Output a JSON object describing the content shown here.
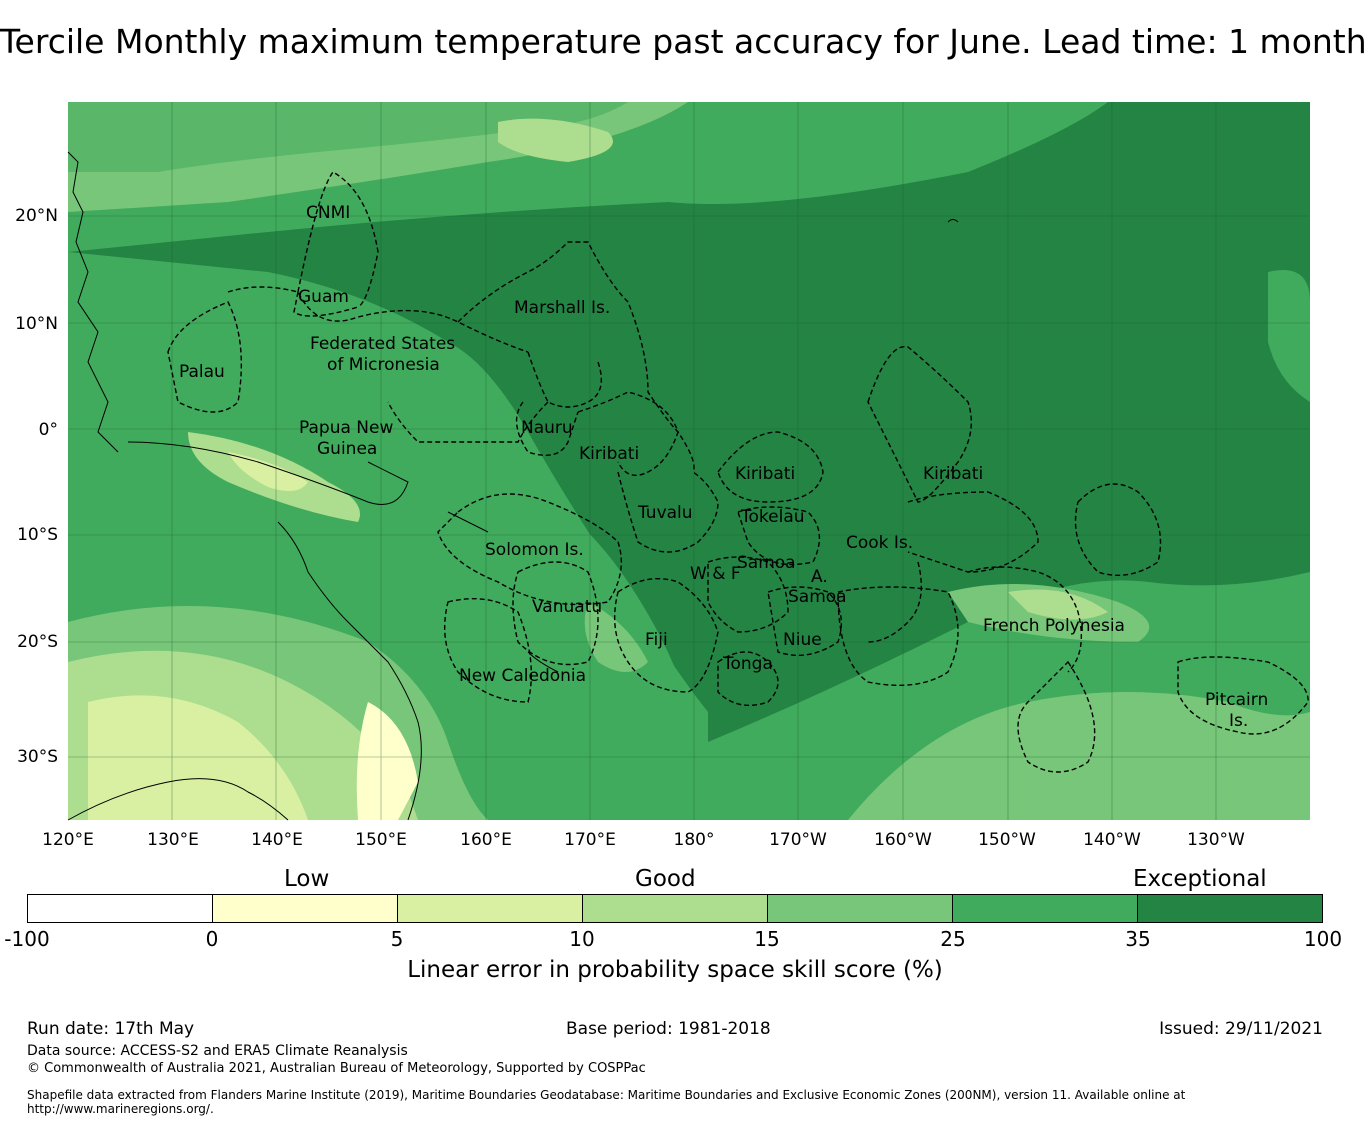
{
  "title": "Tercile Monthly maximum temperature past accuracy for June. Lead time: 1 month",
  "map": {
    "lat_ticks": [
      "20°N",
      "10°N",
      "0°",
      "10°S",
      "20°S",
      "30°S"
    ],
    "lon_ticks": [
      "120°E",
      "130°E",
      "140°E",
      "150°E",
      "160°E",
      "170°E",
      "180°",
      "170°W",
      "160°W",
      "150°W",
      "140°W",
      "130°W"
    ],
    "regions": [
      "CNMI",
      "Guam",
      "Marshall Is.",
      "Federated States",
      "of Micronesia",
      "Palau",
      "Papua New",
      "Guinea",
      "Nauru",
      "Kiribati",
      "Kiribati",
      "Kiribati",
      "Tuvalu",
      "Tokelau",
      "Solomon Is.",
      "Cook Is.",
      "Samoa",
      "W & F",
      "A.",
      "Samoa",
      "Vanuatu",
      "Fiji",
      "Niue",
      "Tonga",
      "French Polynesia",
      "New Caledonia",
      "Pitcairn",
      "Is."
    ],
    "colors": {
      "lowest": "#ffffe0",
      "low": "#d9f0a3",
      "mid": "#addd8e",
      "good": "#78c679",
      "high": "#41ab5d",
      "exceptional": "#238443"
    }
  },
  "colorbar": {
    "categories": [
      "Low",
      "Good",
      "Exceptional"
    ],
    "ticks": [
      "-100",
      "0",
      "5",
      "10",
      "15",
      "25",
      "35",
      "100"
    ],
    "colors": [
      "#ffffff",
      "#ffffcc",
      "#d9f0a3",
      "#addd8e",
      "#78c679",
      "#41ab5d",
      "#238443"
    ],
    "label": "Linear error in probability space skill score (%)"
  },
  "footer": {
    "run_date": "Run date: 17th May",
    "base_period": "Base period: 1981-2018",
    "issued": "Issued: 29/11/2021",
    "data_source": "Data source: ACCESS-S2 and ERA5 Climate Reanalysis",
    "copyright": "© Commonwealth of Australia 2021, Australian Bureau of Meteorology, Supported by COSPPac",
    "shapefile": "Shapefile data extracted from Flanders Marine Institute (2019), Maritime Boundaries Geodatabase: Maritime Boundaries and Exclusive Economic Zones (200NM), version 11. Available online at http://www.marineregions.org/."
  }
}
